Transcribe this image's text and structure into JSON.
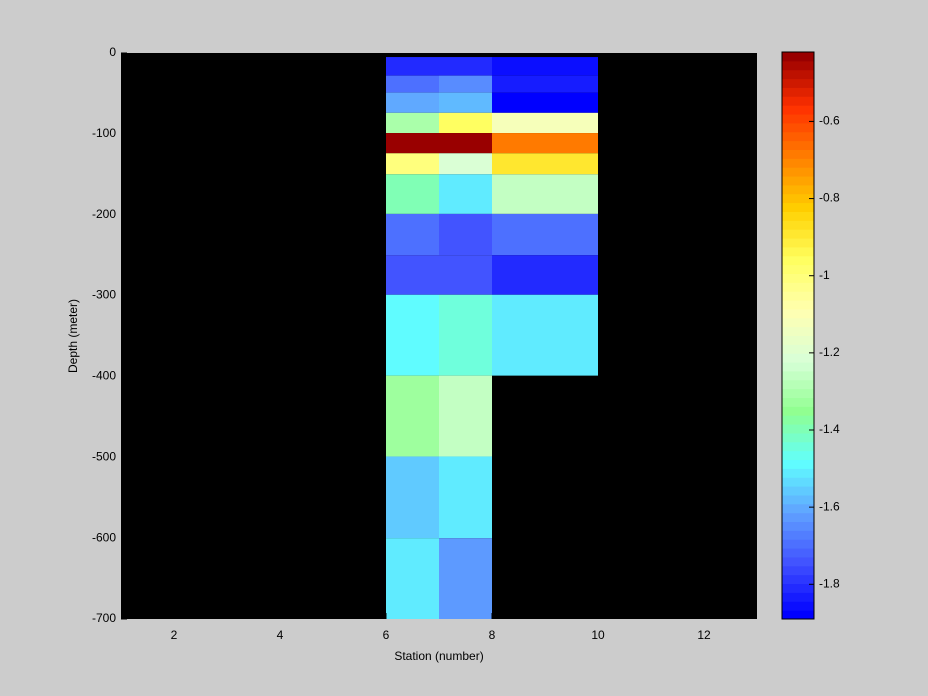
{
  "chart_data": {
    "type": "heatmap",
    "xlabel": "Station (number)",
    "ylabel": "Depth (meter)",
    "xlim": [
      1,
      13
    ],
    "xticks": [
      2,
      4,
      6,
      8,
      10,
      12
    ],
    "ylim": [
      -700,
      0
    ],
    "yticks": [
      0,
      -100,
      -200,
      -300,
      -400,
      -500,
      -600,
      -700
    ],
    "background": "#000000",
    "x_edges": [
      6,
      7,
      8,
      10
    ],
    "y_edges": [
      -5,
      -28,
      -49,
      -74,
      -99,
      -124,
      -150,
      -199,
      -250,
      -299,
      -399,
      -499,
      -600,
      -700
    ],
    "values": [
      [
        -1.82,
        -1.8,
        -1.86
      ],
      [
        -1.7,
        -1.65,
        -1.84
      ],
      [
        -1.6,
        -1.57,
        -1.89
      ],
      [
        -1.3,
        -0.95,
        -1.13
      ],
      [
        -0.42,
        -0.42,
        -0.68
      ],
      [
        -1.0,
        -1.22,
        -0.9
      ],
      [
        -1.4,
        -1.52,
        -1.25
      ],
      [
        -1.7,
        -1.75,
        -1.7
      ],
      [
        -1.73,
        -1.73,
        -1.82
      ],
      [
        -1.48,
        -1.45,
        -1.52
      ],
      [
        -1.32,
        -1.25,
        null
      ],
      [
        -1.55,
        -1.5,
        null
      ],
      [
        -1.52,
        -1.62,
        null
      ]
    ],
    "clim": [
      -1.89,
      -0.42
    ],
    "cticks": [
      -0.6,
      -0.8,
      -1,
      -1.2,
      -1.4,
      -1.6,
      -1.8
    ],
    "colormap_levels": 64,
    "colormap": [
      "#0000ff",
      "#4050ff",
      "#60a0ff",
      "#60ffff",
      "#90ff90",
      "#d8ffd8",
      "#ffffb0",
      "#ffff60",
      "#ffd000",
      "#ff8000",
      "#ff3000",
      "#990000"
    ]
  }
}
